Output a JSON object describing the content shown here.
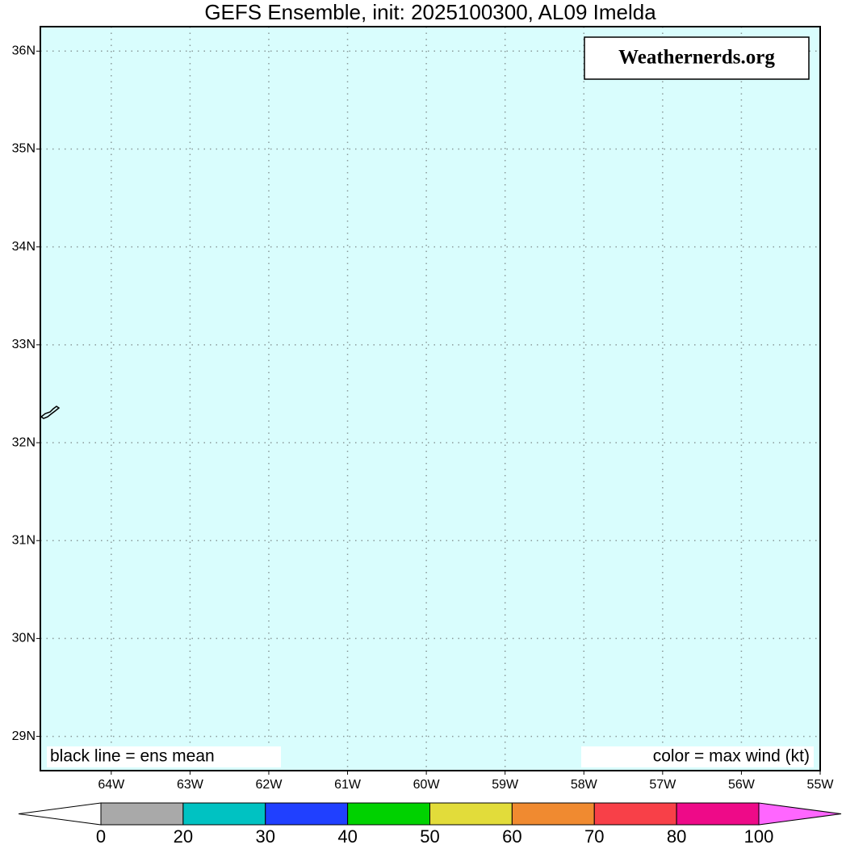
{
  "title": "GEFS Ensemble, init: 2025100300, AL09 Imelda",
  "watermark": "Weathernerds.org",
  "legend_left": "black line = ens mean",
  "legend_right": "color = max wind (kt)",
  "map": {
    "background": "#d9fdfd",
    "lon_lim": [
      -64.9,
      -55
    ],
    "lat_lim": [
      28.65,
      36.25
    ],
    "lat_ticks": [
      {
        "value": 29,
        "label": "29N"
      },
      {
        "value": 30,
        "label": "30N"
      },
      {
        "value": 31,
        "label": "31N"
      },
      {
        "value": 32,
        "label": "32N"
      },
      {
        "value": 33,
        "label": "33N"
      },
      {
        "value": 34,
        "label": "34N"
      },
      {
        "value": 35,
        "label": "35N"
      },
      {
        "value": 36,
        "label": "36N"
      }
    ],
    "lon_ticks": [
      {
        "value": -64,
        "label": "64W"
      },
      {
        "value": -63,
        "label": "63W"
      },
      {
        "value": -62,
        "label": "62W"
      },
      {
        "value": -61,
        "label": "61W"
      },
      {
        "value": -60,
        "label": "60W"
      },
      {
        "value": -59,
        "label": "59W"
      },
      {
        "value": -58,
        "label": "58W"
      },
      {
        "value": -57,
        "label": "57W"
      },
      {
        "value": -56,
        "label": "56W"
      },
      {
        "value": -55,
        "label": "55W"
      }
    ]
  },
  "colorbar": {
    "bounds": [
      0,
      20,
      30,
      40,
      50,
      60,
      70,
      80,
      100
    ],
    "colors": [
      "#a9a9a9",
      "#00c2c2",
      "#2040ff",
      "#00d200",
      "#e2dc3a",
      "#f08a30",
      "#f84048",
      "#ee0a88"
    ],
    "under_color": "#ffffff",
    "over_color": "#ff66ff"
  }
}
